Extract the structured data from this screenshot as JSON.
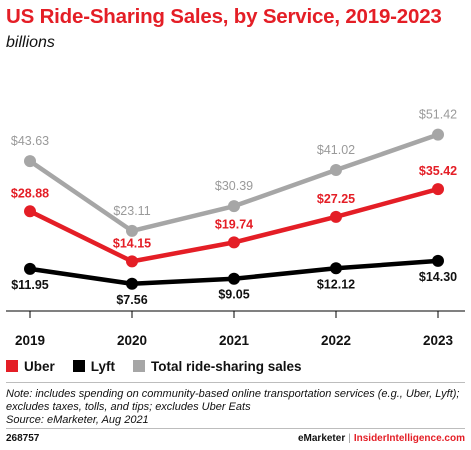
{
  "header": {
    "title": "US Ride-Sharing Sales, by Service, 2019-2023",
    "subtitle": "billions"
  },
  "chart_data": {
    "type": "line",
    "title": "US Ride-Sharing Sales, by Service, 2019-2023",
    "subtitle": "billions",
    "x": [
      "2019",
      "2020",
      "2021",
      "2022",
      "2023"
    ],
    "ylim": [
      0,
      60
    ],
    "grid": false,
    "legend_placement": "bottom-left",
    "series": [
      {
        "name": "Total ride-sharing sales",
        "color": "#a6a6a6",
        "values": [
          43.63,
          23.11,
          30.39,
          41.02,
          51.42
        ],
        "labels": [
          "$43.63",
          "$23.11",
          "$30.39",
          "$41.02",
          "$51.42"
        ]
      },
      {
        "name": "Uber",
        "color": "#e41e26",
        "values": [
          28.88,
          14.15,
          19.74,
          27.25,
          35.42
        ],
        "labels": [
          "$28.88",
          "$14.15",
          "$19.74",
          "$27.25",
          "$35.42"
        ]
      },
      {
        "name": "Lyft",
        "color": "#000000",
        "values": [
          11.95,
          7.56,
          9.05,
          12.12,
          14.3
        ],
        "labels": [
          "$11.95",
          "$7.56",
          "$9.05",
          "$12.12",
          "$14.30"
        ]
      }
    ]
  },
  "legend": {
    "items": [
      {
        "label": "Uber",
        "color": "#e41e26"
      },
      {
        "label": "Lyft",
        "color": "#000000"
      },
      {
        "label": "Total ride-sharing sales",
        "color": "#a6a6a6"
      }
    ]
  },
  "notes": {
    "line1": "Note: includes spending on community-based online transportation services (e.g., Uber, Lyft);",
    "line2": "excludes taxes, tolls, and tips; excludes Uber Eats",
    "line3": "Source: eMarketer, Aug 2021"
  },
  "footer": {
    "chart_id": "268757",
    "brand": "eMarketer",
    "separator": "|",
    "brand2": "InsiderIntelligence.com"
  }
}
